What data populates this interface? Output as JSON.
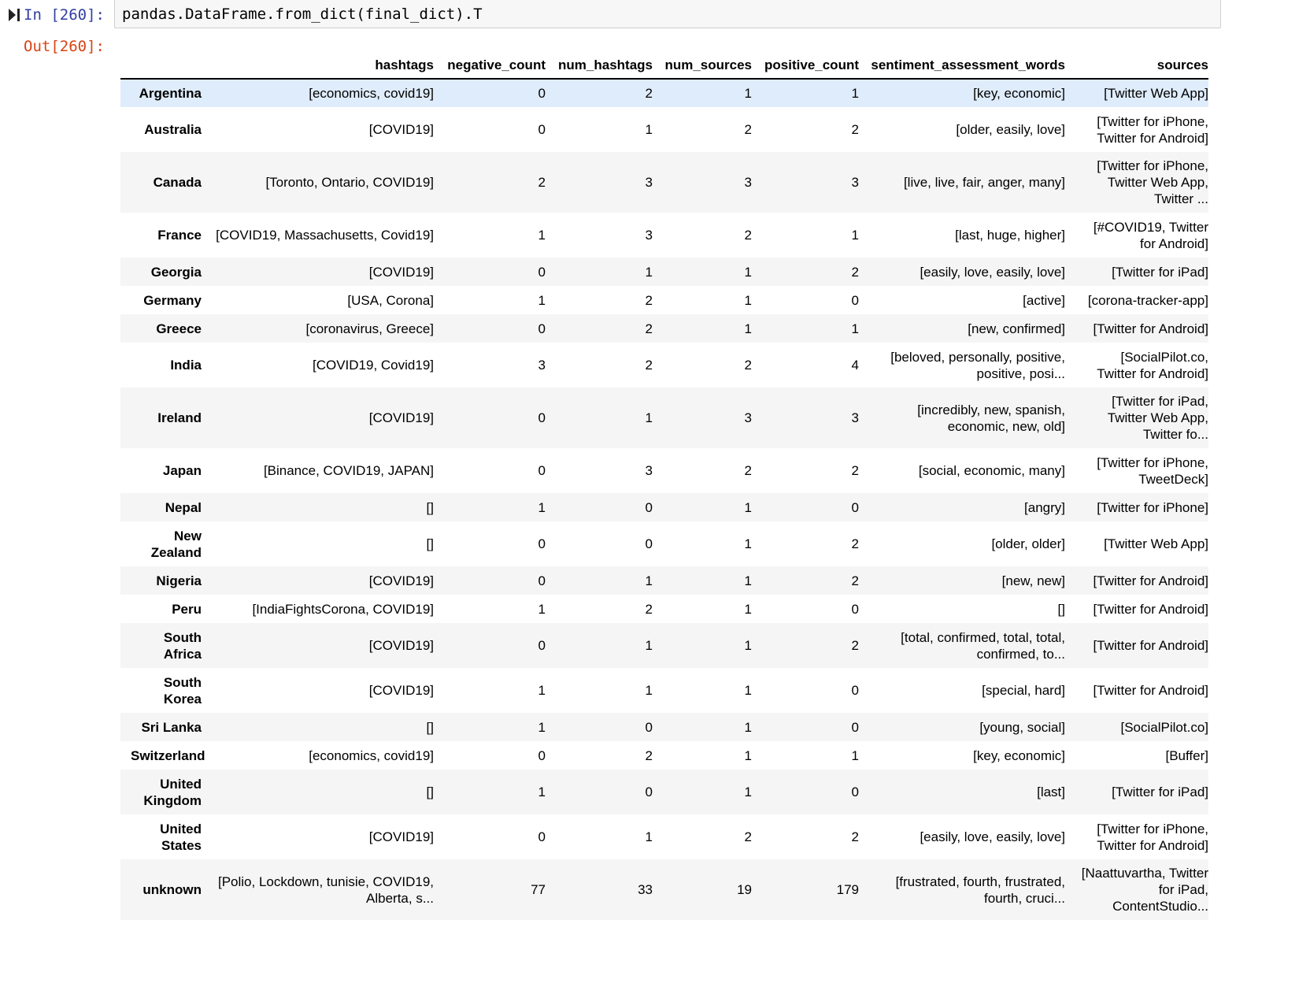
{
  "input_cell": {
    "prompt": "In [260]:",
    "code": "pandas.DataFrame.from_dict(final_dict).T"
  },
  "output_cell": {
    "prompt": "Out[260]:"
  },
  "table": {
    "columns": [
      "hashtags",
      "negative_count",
      "num_hashtags",
      "num_sources",
      "positive_count",
      "sentiment_assessment_words",
      "sources"
    ],
    "rows": [
      {
        "index": "Argentina",
        "hashtags": "[economics, covid19]",
        "negative_count": "0",
        "num_hashtags": "2",
        "num_sources": "1",
        "positive_count": "1",
        "sentiment_assessment_words": "[key, economic]",
        "sources": "[Twitter Web App]"
      },
      {
        "index": "Australia",
        "hashtags": "[COVID19]",
        "negative_count": "0",
        "num_hashtags": "1",
        "num_sources": "2",
        "positive_count": "2",
        "sentiment_assessment_words": "[older, easily, love]",
        "sources": "[Twitter for iPhone, Twitter for Android]"
      },
      {
        "index": "Canada",
        "hashtags": "[Toronto, Ontario, COVID19]",
        "negative_count": "2",
        "num_hashtags": "3",
        "num_sources": "3",
        "positive_count": "3",
        "sentiment_assessment_words": "[live, live, fair, anger, many]",
        "sources": "[Twitter for iPhone, Twitter Web App, Twitter ..."
      },
      {
        "index": "France",
        "hashtags": "[COVID19, Massachusetts, Covid19]",
        "negative_count": "1",
        "num_hashtags": "3",
        "num_sources": "2",
        "positive_count": "1",
        "sentiment_assessment_words": "[last, huge, higher]",
        "sources": "[#COVID19, Twitter for Android]"
      },
      {
        "index": "Georgia",
        "hashtags": "[COVID19]",
        "negative_count": "0",
        "num_hashtags": "1",
        "num_sources": "1",
        "positive_count": "2",
        "sentiment_assessment_words": "[easily, love, easily, love]",
        "sources": "[Twitter for iPad]"
      },
      {
        "index": "Germany",
        "hashtags": "[USA, Corona]",
        "negative_count": "1",
        "num_hashtags": "2",
        "num_sources": "1",
        "positive_count": "0",
        "sentiment_assessment_words": "[active]",
        "sources": "[corona-tracker-app]"
      },
      {
        "index": "Greece",
        "hashtags": "[coronavirus, Greece]",
        "negative_count": "0",
        "num_hashtags": "2",
        "num_sources": "1",
        "positive_count": "1",
        "sentiment_assessment_words": "[new, confirmed]",
        "sources": "[Twitter for Android]"
      },
      {
        "index": "India",
        "hashtags": "[COVID19, Covid19]",
        "negative_count": "3",
        "num_hashtags": "2",
        "num_sources": "2",
        "positive_count": "4",
        "sentiment_assessment_words": "[beloved, personally, positive, positive, posi...",
        "sources": "[SocialPilot.co, Twitter for Android]"
      },
      {
        "index": "Ireland",
        "hashtags": "[COVID19]",
        "negative_count": "0",
        "num_hashtags": "1",
        "num_sources": "3",
        "positive_count": "3",
        "sentiment_assessment_words": "[incredibly, new, spanish, economic, new, old]",
        "sources": "[Twitter for iPad, Twitter Web App, Twitter fo..."
      },
      {
        "index": "Japan",
        "hashtags": "[Binance, COVID19, JAPAN]",
        "negative_count": "0",
        "num_hashtags": "3",
        "num_sources": "2",
        "positive_count": "2",
        "sentiment_assessment_words": "[social, economic, many]",
        "sources": "[Twitter for iPhone, TweetDeck]"
      },
      {
        "index": "Nepal",
        "hashtags": "[]",
        "negative_count": "1",
        "num_hashtags": "0",
        "num_sources": "1",
        "positive_count": "0",
        "sentiment_assessment_words": "[angry]",
        "sources": "[Twitter for iPhone]"
      },
      {
        "index": "New Zealand",
        "hashtags": "[]",
        "negative_count": "0",
        "num_hashtags": "0",
        "num_sources": "1",
        "positive_count": "2",
        "sentiment_assessment_words": "[older, older]",
        "sources": "[Twitter Web App]"
      },
      {
        "index": "Nigeria",
        "hashtags": "[COVID19]",
        "negative_count": "0",
        "num_hashtags": "1",
        "num_sources": "1",
        "positive_count": "2",
        "sentiment_assessment_words": "[new, new]",
        "sources": "[Twitter for Android]"
      },
      {
        "index": "Peru",
        "hashtags": "[IndiaFightsCorona, COVID19]",
        "negative_count": "1",
        "num_hashtags": "2",
        "num_sources": "1",
        "positive_count": "0",
        "sentiment_assessment_words": "[]",
        "sources": "[Twitter for Android]"
      },
      {
        "index": "South Africa",
        "hashtags": "[COVID19]",
        "negative_count": "0",
        "num_hashtags": "1",
        "num_sources": "1",
        "positive_count": "2",
        "sentiment_assessment_words": "[total, confirmed, total, total, confirmed, to...",
        "sources": "[Twitter for Android]"
      },
      {
        "index": "South Korea",
        "hashtags": "[COVID19]",
        "negative_count": "1",
        "num_hashtags": "1",
        "num_sources": "1",
        "positive_count": "0",
        "sentiment_assessment_words": "[special, hard]",
        "sources": "[Twitter for Android]"
      },
      {
        "index": "Sri Lanka",
        "hashtags": "[]",
        "negative_count": "1",
        "num_hashtags": "0",
        "num_sources": "1",
        "positive_count": "0",
        "sentiment_assessment_words": "[young, social]",
        "sources": "[SocialPilot.co]"
      },
      {
        "index": "Switzerland",
        "hashtags": "[economics, covid19]",
        "negative_count": "0",
        "num_hashtags": "2",
        "num_sources": "1",
        "positive_count": "1",
        "sentiment_assessment_words": "[key, economic]",
        "sources": "[Buffer]"
      },
      {
        "index": "United Kingdom",
        "hashtags": "[]",
        "negative_count": "1",
        "num_hashtags": "0",
        "num_sources": "1",
        "positive_count": "0",
        "sentiment_assessment_words": "[last]",
        "sources": "[Twitter for iPad]"
      },
      {
        "index": "United States",
        "hashtags": "[COVID19]",
        "negative_count": "0",
        "num_hashtags": "1",
        "num_sources": "2",
        "positive_count": "2",
        "sentiment_assessment_words": "[easily, love, easily, love]",
        "sources": "[Twitter for iPhone, Twitter for Android]"
      },
      {
        "index": "unknown",
        "hashtags": "[Polio, Lockdown, tunisie, COVID19, Alberta, s...",
        "negative_count": "77",
        "num_hashtags": "33",
        "num_sources": "19",
        "positive_count": "179",
        "sentiment_assessment_words": "[frustrated, fourth, frustrated, fourth, cruci...",
        "sources": "[Naattuvartha, Twitter for iPad, ContentStudio..."
      }
    ]
  }
}
